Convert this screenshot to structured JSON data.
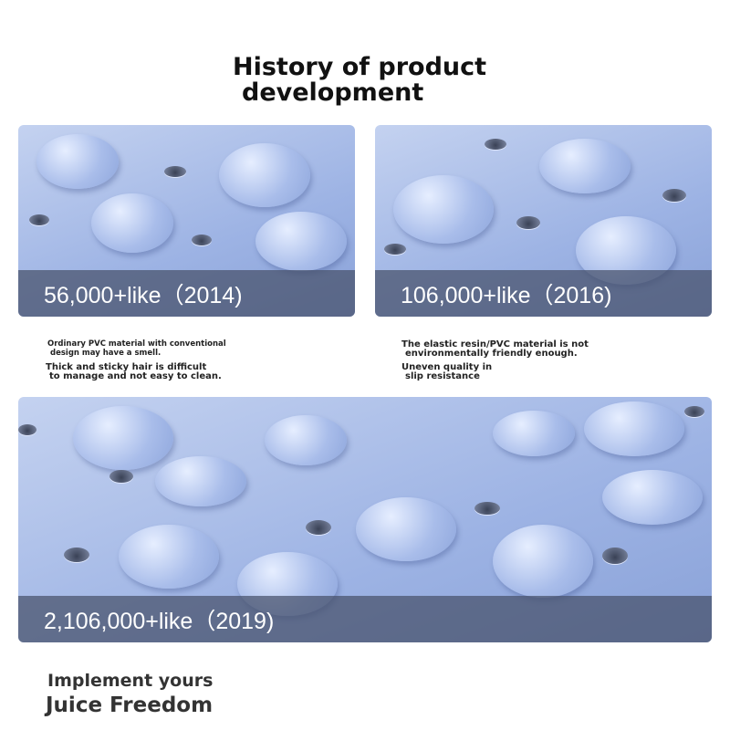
{
  "title": {
    "line1": "History of product",
    "line2": "development"
  },
  "panels": [
    {
      "label": "56,000+like（2014)"
    },
    {
      "label": "106,000+like（2016)"
    },
    {
      "label": "2,106,000+like（2019)"
    }
  ],
  "notes": {
    "left": [
      "Ordinary PVC material with conventional",
      "design may have a smell.",
      "Thick and sticky hair is difficult",
      "to manage and not easy to clean."
    ],
    "right": [
      "The elastic resin/PVC material is not",
      "environmentally friendly enough.",
      "Uneven quality in",
      "slip resistance"
    ]
  },
  "footer": {
    "line1": "Implement yours",
    "line2": "Juice Freedom"
  },
  "colors": {
    "mat": "#a9bdea",
    "band": "#464f69"
  }
}
